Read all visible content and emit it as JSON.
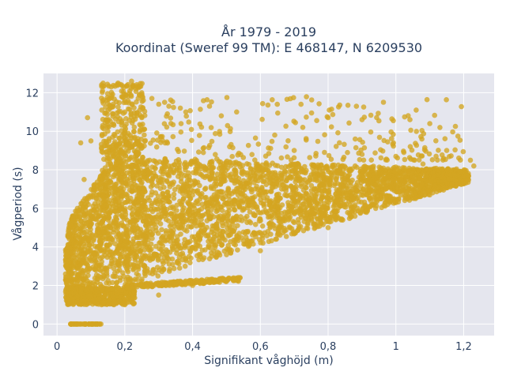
{
  "chart_data": {
    "type": "scatter",
    "title_lines": [
      "År 1979 - 2019",
      "Koordinat (Sweref 99 TM): E 468147, N 6209530"
    ],
    "xlabel": "Signifikant våghöjd (m)",
    "ylabel": "Vågperiod (s)",
    "xlim": [
      -0.04,
      1.29
    ],
    "ylim": [
      -0.6,
      13.0
    ],
    "x_ticks": [
      0,
      0.2,
      0.4,
      0.6,
      0.8,
      1.0,
      1.2
    ],
    "x_tick_labels": [
      "0",
      "0,2",
      "0,4",
      "0,6",
      "0,8",
      "1",
      "1,2"
    ],
    "y_ticks": [
      0,
      2,
      4,
      6,
      8,
      10,
      12
    ],
    "y_tick_labels": [
      "0",
      "2",
      "4",
      "6",
      "8",
      "10",
      "12"
    ],
    "grid": true,
    "marker_color": "#D4A521",
    "background_color": "#E5E6EE",
    "points_sample": [
      [
        0.04,
        0.0
      ],
      [
        0.06,
        0.0
      ],
      [
        0.08,
        0.0
      ],
      [
        0.1,
        0.0
      ],
      [
        0.12,
        0.0
      ],
      [
        0.03,
        1.3
      ],
      [
        0.05,
        3.5
      ],
      [
        0.06,
        6.0
      ],
      [
        0.08,
        7.5
      ],
      [
        0.07,
        9.4
      ],
      [
        0.09,
        10.7
      ],
      [
        0.1,
        9.5
      ],
      [
        0.14,
        7.7
      ],
      [
        0.15,
        10.0
      ],
      [
        0.16,
        12.3
      ],
      [
        0.18,
        12.5
      ],
      [
        0.2,
        11.0
      ],
      [
        0.22,
        12.6
      ],
      [
        0.25,
        12.0
      ],
      [
        0.28,
        11.7
      ],
      [
        0.33,
        11.3
      ],
      [
        0.38,
        11.0
      ],
      [
        0.45,
        11.3
      ],
      [
        0.53,
        11.0
      ],
      [
        0.65,
        11.4
      ],
      [
        0.72,
        11.4
      ],
      [
        0.8,
        10.7
      ],
      [
        0.9,
        10.6
      ],
      [
        1.06,
        11.1
      ],
      [
        1.1,
        10.4
      ],
      [
        1.13,
        10.2
      ],
      [
        0.2,
        1.0
      ],
      [
        0.3,
        1.5
      ],
      [
        0.4,
        2.0
      ],
      [
        0.5,
        2.2
      ],
      [
        0.54,
        2.4
      ],
      [
        0.25,
        2.2
      ],
      [
        0.35,
        2.1
      ],
      [
        0.6,
        3.8
      ],
      [
        0.8,
        5.0
      ],
      [
        1.0,
        6.3
      ],
      [
        1.1,
        6.7
      ],
      [
        1.2,
        7.3
      ],
      [
        1.22,
        8.5
      ],
      [
        1.23,
        8.2
      ],
      [
        0.7,
        9.0
      ],
      [
        0.9,
        8.8
      ],
      [
        1.0,
        8.7
      ],
      [
        1.15,
        9.0
      ],
      [
        1.08,
        8.3
      ]
    ]
  }
}
